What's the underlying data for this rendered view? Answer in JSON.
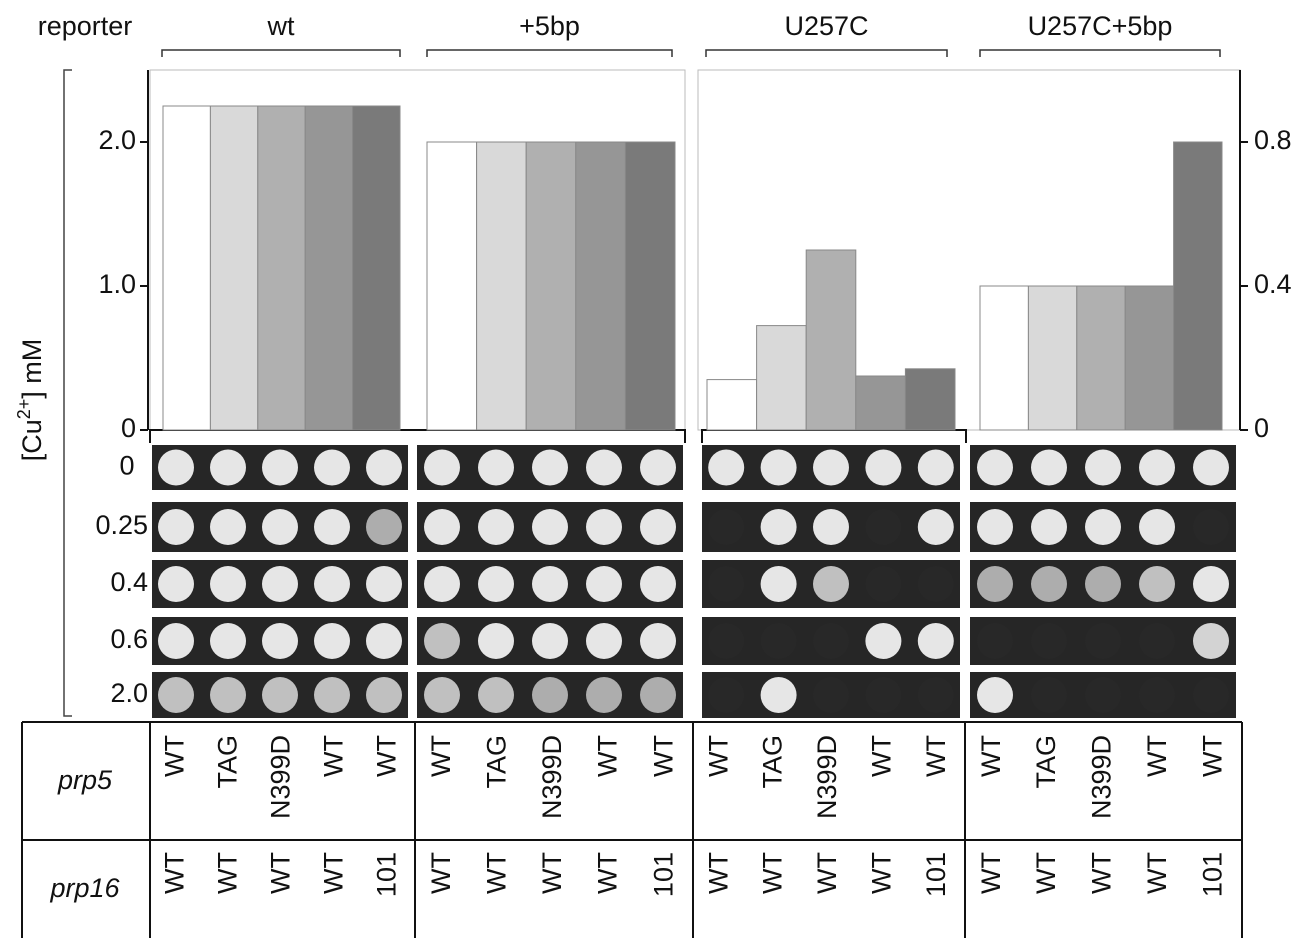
{
  "chart_data": {
    "type": "bar",
    "reporter_label": "reporter",
    "ylabel": [
      "[Cu",
      "2+",
      "] mM"
    ],
    "ylim": [
      0,
      2.5
    ],
    "yticks": [
      0,
      {
        "value": 1,
        "label": "1.0"
      },
      {
        "value": 2,
        "label": "2.0"
      }
    ],
    "y2lim": [
      0,
      1.0
    ],
    "y2ticks": [
      0,
      0.4,
      0.8
    ],
    "colors": [
      "#ffffff",
      "#d9d9d9",
      "#b0b0b0",
      "#969696",
      "#7a7a7a"
    ],
    "groups": [
      {
        "name": "wt",
        "axis": "y",
        "values": [
          2.25,
          2.25,
          2.25,
          2.25,
          2.25
        ]
      },
      {
        "name": "+5bp",
        "axis": "y",
        "values": [
          2.0,
          2.0,
          2.0,
          2.0,
          2.0
        ]
      },
      {
        "name": "U257C",
        "axis": "y2",
        "values": [
          0.14,
          0.29,
          0.5,
          0.15,
          0.17
        ]
      },
      {
        "name": "U257C+5bp",
        "axis": "y2",
        "values": [
          0.4,
          0.4,
          0.4,
          0.4,
          0.8
        ]
      }
    ],
    "plates": {
      "concentrations": [
        "0",
        "0.25",
        "0.4",
        "0.6",
        "2.0"
      ]
    },
    "table": {
      "rows": [
        {
          "label": "prp5",
          "cells": [
            "WT",
            "TAG",
            "N399D",
            "WT",
            "WT",
            "WT",
            "TAG",
            "N399D",
            "WT",
            "WT",
            "WT",
            "TAG",
            "N399D",
            "WT",
            "WT",
            "WT",
            "TAG",
            "N399D",
            "WT",
            "WT"
          ]
        },
        {
          "label": "prp16",
          "cells": [
            "WT",
            "WT",
            "WT",
            "WT",
            "101",
            "WT",
            "WT",
            "WT",
            "WT",
            "101",
            "WT",
            "WT",
            "WT",
            "WT",
            "101",
            "WT",
            "WT",
            "WT",
            "WT",
            "101"
          ]
        }
      ]
    }
  }
}
